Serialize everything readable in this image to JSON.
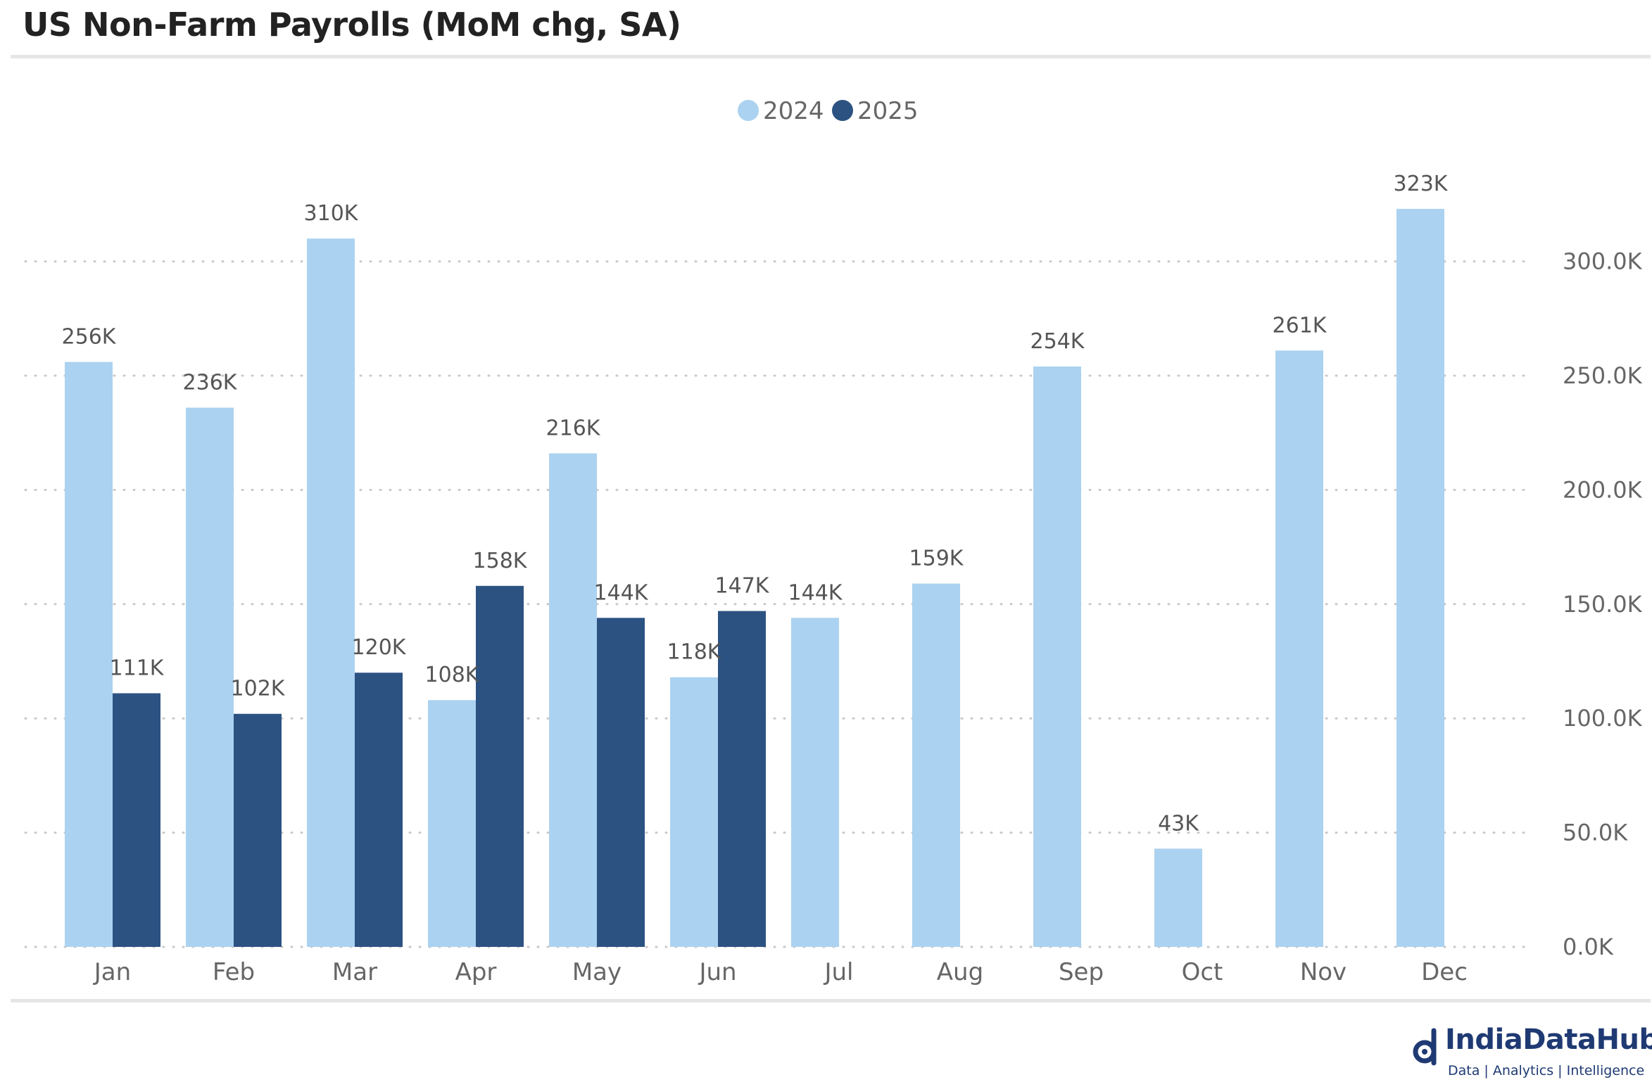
{
  "header": {
    "title": "US Non-Farm Payrolls (MoM chg, SA)"
  },
  "branding": {
    "name": "IndiaDataHub",
    "tagline": "Data | Analytics | Intelligence"
  },
  "colors": {
    "series_2024": "#abd2f0",
    "series_2025": "#2c5282",
    "grid": "#c8c8c8",
    "axis_text": "#666666",
    "label_text": "#555555"
  },
  "chart_data": {
    "type": "bar",
    "title": "US Non-Farm Payrolls (MoM chg, SA)",
    "xlabel": "",
    "ylabel": "",
    "ylim": [
      0,
      340000
    ],
    "y_ticks": [
      0,
      50000,
      100000,
      150000,
      200000,
      250000,
      300000
    ],
    "y_tick_labels": [
      "0.0K",
      "50.0K",
      "100.0K",
      "150.0K",
      "200.0K",
      "250.0K",
      "300.0K"
    ],
    "y_axis_side": "right",
    "grid": true,
    "legend_position": "top-center",
    "categories": [
      "Jan",
      "Feb",
      "Mar",
      "Apr",
      "May",
      "Jun",
      "Jul",
      "Aug",
      "Sep",
      "Oct",
      "Nov",
      "Dec"
    ],
    "series": [
      {
        "name": "2024",
        "values": [
          256000,
          236000,
          310000,
          108000,
          216000,
          118000,
          144000,
          159000,
          254000,
          43000,
          261000,
          323000
        ],
        "labels": [
          "256K",
          "236K",
          "310K",
          "108K",
          "216K",
          "118K",
          "144K",
          "159K",
          "254K",
          "43K",
          "261K",
          "323K"
        ]
      },
      {
        "name": "2025",
        "values": [
          111000,
          102000,
          120000,
          158000,
          144000,
          147000,
          null,
          null,
          null,
          null,
          null,
          null
        ],
        "labels": [
          "111K",
          "102K",
          "120K",
          "158K",
          "144K",
          "147K",
          null,
          null,
          null,
          null,
          null,
          null
        ]
      }
    ]
  }
}
